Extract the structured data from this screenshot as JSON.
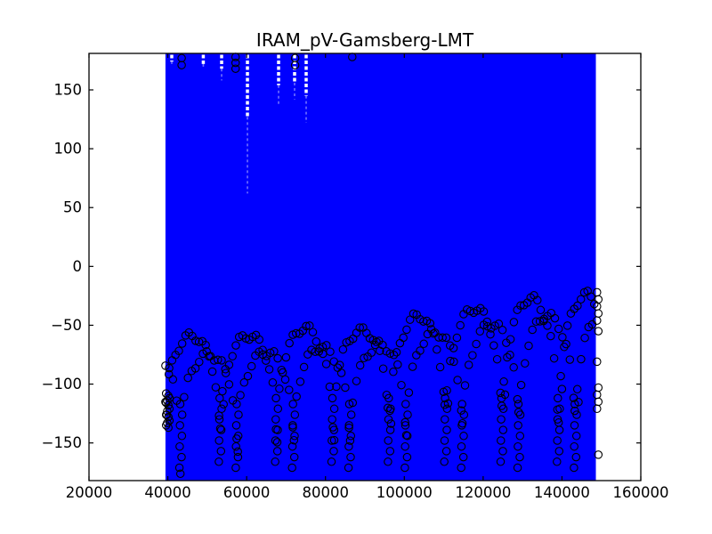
{
  "figure": {
    "title": "IRAM_pV-Gamsberg-LMT",
    "background_color": "#ffffff"
  },
  "chart_data": {
    "type": "scatter",
    "title": "IRAM_pV-Gamsberg-LMT",
    "xlabel": "",
    "ylabel": "",
    "grid": false,
    "legend": null,
    "xlim": [
      20000,
      160000
    ],
    "ylim": [
      -182,
      181
    ],
    "xticks": {
      "values": [
        20000,
        40000,
        60000,
        80000,
        100000,
        120000,
        140000,
        160000
      ],
      "labels": [
        "20000",
        "40000",
        "60000",
        "80000",
        "100000",
        "120000",
        "140000",
        "160000"
      ]
    },
    "yticks": {
      "values": [
        -150,
        -100,
        -50,
        0,
        50,
        100,
        150
      ],
      "labels": [
        "−150",
        "−100",
        "−50",
        "0",
        "50",
        "100",
        "150"
      ]
    },
    "colors": {
      "band": "#0000ff",
      "marker_edge": "#000000",
      "frame": "#000000",
      "gap_streak": "#ffffff",
      "gap_tail": "#8d8dff"
    },
    "band": {
      "description": "dense blue vertical error-bar band filling full y-range",
      "x_start": 39400,
      "x_end": 148600,
      "y_min": -182,
      "y_max": 181
    },
    "gaps": [
      {
        "x": 41000,
        "depth_to": 174,
        "faint_to": 172
      },
      {
        "x": 49000,
        "depth_to": 172,
        "faint_to": 169
      },
      {
        "x": 53650,
        "depth_to": 168,
        "faint_to": 158
      },
      {
        "x": 60200,
        "depth_to": 127,
        "faint_to": 62
      },
      {
        "x": 68100,
        "depth_to": 154,
        "faint_to": 138
      },
      {
        "x": 72160,
        "depth_to": 156,
        "faint_to": 142
      },
      {
        "x": 75100,
        "depth_to": 145,
        "faint_to": 122
      }
    ],
    "scatter_pattern": {
      "description": "periodic arches of open circles between ~-170 and -24, peaks rising to the right, narrow valley chains",
      "period": 14300,
      "valley_x0": 38900,
      "peak_xs": [
        45900,
        60200,
        74500,
        88800,
        103100,
        117400,
        131700,
        146000
      ],
      "peak_ys": [
        -59,
        -59,
        -52,
        -55,
        -42,
        -36,
        -27,
        -24
      ],
      "bottom": -168,
      "exponent": 0.32,
      "step": 850,
      "jitter_amp": 3.5,
      "jitter_period": 700,
      "chain_points": 7,
      "chain_dy": 9,
      "series2": {
        "phase_shift": 4300,
        "top_offset": -16,
        "bottom": -173,
        "step": 950,
        "exponent": 0.3
      }
    },
    "top_outliers": [
      {
        "x": 43500,
        "ys": [
          177,
          171
        ]
      },
      {
        "x": 57200,
        "ys": [
          178,
          173,
          168
        ]
      },
      {
        "x": 72300,
        "ys": [
          177,
          171
        ]
      },
      {
        "x": 86800,
        "ys": [
          178
        ]
      }
    ],
    "left_cluster": {
      "x_center": 40000,
      "ys": [
        -108,
        -112,
        -116,
        -121,
        -126,
        -131,
        -135
      ]
    },
    "right_edge": {
      "x": 149000,
      "ys": [
        -22,
        -28,
        -34,
        -40,
        -46,
        -55,
        -81,
        -103,
        -109,
        -115,
        -121,
        -160
      ]
    },
    "marker": {
      "shape": "o",
      "radius_px": 4.2,
      "filled": false
    }
  }
}
